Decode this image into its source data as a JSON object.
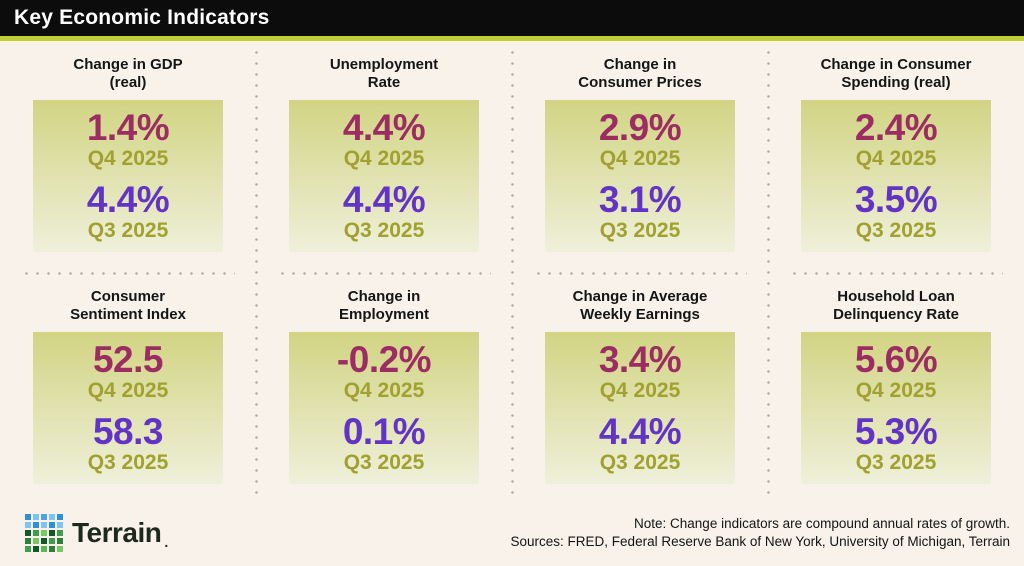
{
  "header": {
    "title": "Key Economic Indicators"
  },
  "colors": {
    "header_bg": "#0c0c0c",
    "header_text": "#ffffff",
    "accent_stripe": "#c2cc34",
    "page_bg": "#f8f2eb",
    "box_gradient_top": "#d2d483",
    "box_gradient_bottom": "#eff0da",
    "q4_value_color": "#9c2d63",
    "q3_value_color": "#6134c6",
    "quarter_label_color": "#a1a130",
    "divider_dot_color": "#b5ada3"
  },
  "cards": [
    {
      "title_line1": "Change in GDP",
      "title_line2": "(real)",
      "q4_value": "1.4%",
      "q4_label": "Q4 2025",
      "q3_value": "4.4%",
      "q3_label": "Q3 2025"
    },
    {
      "title_line1": "Unemployment",
      "title_line2": "Rate",
      "q4_value": "4.4%",
      "q4_label": "Q4 2025",
      "q3_value": "4.4%",
      "q3_label": "Q3 2025"
    },
    {
      "title_line1": "Change in",
      "title_line2": "Consumer Prices",
      "q4_value": "2.9%",
      "q4_label": "Q4 2025",
      "q3_value": "3.1%",
      "q3_label": "Q3 2025"
    },
    {
      "title_line1": "Change in Consumer",
      "title_line2": "Spending (real)",
      "q4_value": "2.4%",
      "q4_label": "Q4 2025",
      "q3_value": "3.5%",
      "q3_label": "Q3 2025"
    },
    {
      "title_line1": "Consumer",
      "title_line2": "Sentiment Index",
      "q4_value": "52.5",
      "q4_label": "Q4 2025",
      "q3_value": "58.3",
      "q3_label": "Q3 2025"
    },
    {
      "title_line1": "Change in",
      "title_line2": "Employment",
      "q4_value": "-0.2%",
      "q4_label": "Q4 2025",
      "q3_value": "0.1%",
      "q3_label": "Q3 2025"
    },
    {
      "title_line1": "Change in Average",
      "title_line2": "Weekly Earnings",
      "q4_value": "3.4%",
      "q4_label": "Q4 2025",
      "q3_value": "4.4%",
      "q3_label": "Q3 2025"
    },
    {
      "title_line1": "Household Loan",
      "title_line2": "Delinquency Rate",
      "q4_value": "5.6%",
      "q4_label": "Q4 2025",
      "q3_value": "5.3%",
      "q3_label": "Q3 2025"
    }
  ],
  "footer": {
    "brand": "Terrain",
    "brand_mark": ".",
    "note": "Note: Change indicators are compound annual rates of growth.",
    "sources": "Sources: FRED, Federal Reserve Bank of New York, University of Michigan, Terrain",
    "logo_grid": [
      [
        "#2d8fd8",
        "#7fc4ef",
        "#4aa3e2",
        "#7fc4ef",
        "#2d8fd8"
      ],
      [
        "#7fc4ef",
        "#2d8fd8",
        "#7fc4ef",
        "#2d8fd8",
        "#7fc4ef"
      ],
      [
        "#14572e",
        "#3f9e4d",
        "#7ac863",
        "#14572e",
        "#3f9e4d"
      ],
      [
        "#2e7d3c",
        "#7ac863",
        "#14572e",
        "#3f9e4d",
        "#2e7d3c"
      ],
      [
        "#3f9e4d",
        "#14572e",
        "#5bb554",
        "#2e7d3c",
        "#7ac863"
      ]
    ]
  },
  "chart_data": {
    "type": "table",
    "title": "Key Economic Indicators",
    "categories": [
      "Change in GDP (real)",
      "Unemployment Rate",
      "Change in Consumer Prices",
      "Change in Consumer Spending (real)",
      "Consumer Sentiment Index",
      "Change in Employment",
      "Change in Average Weekly Earnings",
      "Household Loan Delinquency Rate"
    ],
    "series": [
      {
        "name": "Q4 2025",
        "values": [
          "1.4%",
          "4.4%",
          "2.9%",
          "2.4%",
          "52.5",
          "-0.2%",
          "3.4%",
          "5.6%"
        ]
      },
      {
        "name": "Q3 2025",
        "values": [
          "4.4%",
          "4.4%",
          "3.1%",
          "3.5%",
          "58.3",
          "0.1%",
          "4.4%",
          "5.3%"
        ]
      }
    ],
    "annotations": [
      "Note: Change indicators are compound annual rates of growth.",
      "Sources: FRED, Federal Reserve Bank of New York, University of Michigan, Terrain"
    ]
  }
}
